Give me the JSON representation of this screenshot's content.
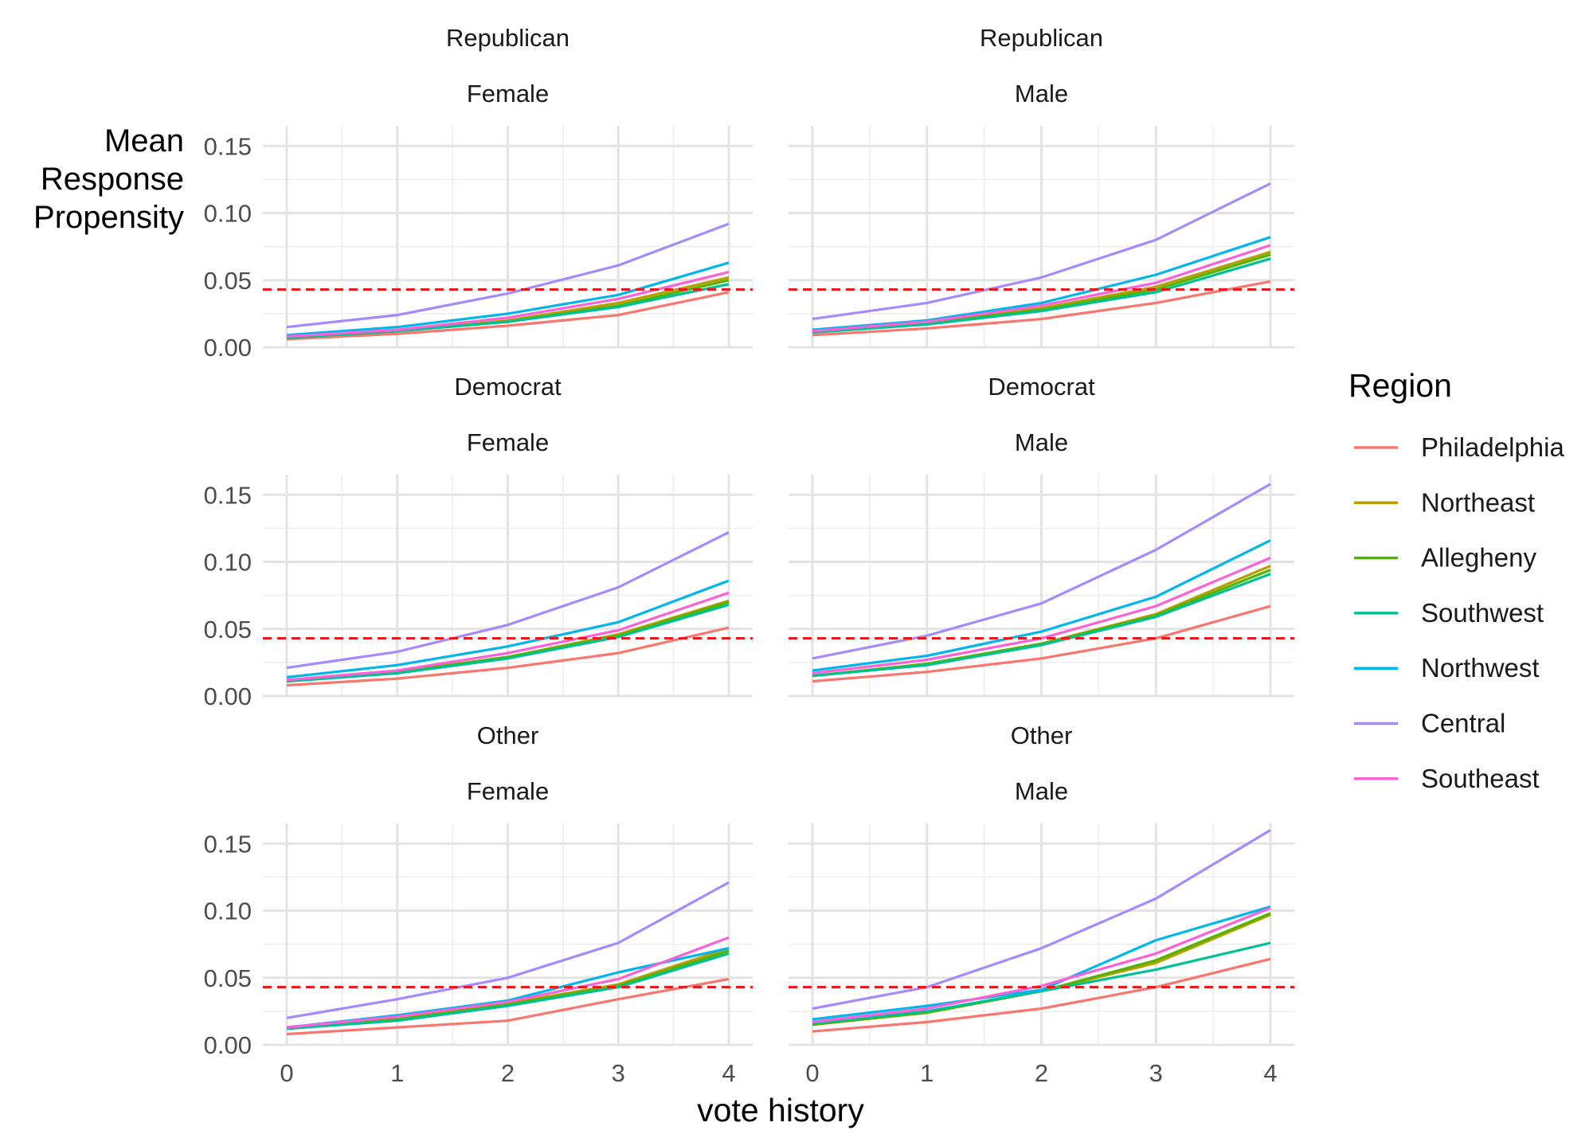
{
  "chart_data": {
    "type": "line",
    "facet_rows": [
      "Republican",
      "Democrat",
      "Other"
    ],
    "facet_cols": [
      "Female",
      "Male"
    ],
    "x": [
      0,
      1,
      2,
      3,
      4
    ],
    "x_ticks": [
      "0",
      "1",
      "2",
      "3",
      "4"
    ],
    "xlim": [
      0,
      4
    ],
    "ylim": [
      0,
      0.165
    ],
    "y_ticks": [
      "0.00",
      "0.05",
      "0.10",
      "0.15"
    ],
    "y_tick_values": [
      0,
      0.05,
      0.1,
      0.15
    ],
    "xlabel": "vote history",
    "ylabel": [
      "Mean",
      "Response",
      "Propensity"
    ],
    "reference_line": {
      "y": 0.043,
      "style": "dashed",
      "color": "#e41a1c"
    },
    "grid": true,
    "legend": {
      "title": "Region",
      "placement": "right",
      "items": [
        {
          "name": "Philadelphia",
          "color": "#f8766d"
        },
        {
          "name": "Northeast",
          "color": "#b79f00"
        },
        {
          "name": "Allegheny",
          "color": "#53b400"
        },
        {
          "name": "Southwest",
          "color": "#00c094"
        },
        {
          "name": "Northwest",
          "color": "#00b6eb"
        },
        {
          "name": "Central",
          "color": "#a58aff"
        },
        {
          "name": "Southeast",
          "color": "#fb61d7"
        }
      ]
    },
    "panels": [
      {
        "party": "Republican",
        "gender": "Female",
        "series": [
          {
            "name": "Philadelphia",
            "values": [
              0.006,
              0.01,
              0.016,
              0.024,
              0.041
            ]
          },
          {
            "name": "Northeast",
            "values": [
              0.007,
              0.012,
              0.02,
              0.033,
              0.052
            ]
          },
          {
            "name": "Allegheny",
            "values": [
              0.007,
              0.012,
              0.019,
              0.031,
              0.05
            ]
          },
          {
            "name": "Southwest",
            "values": [
              0.007,
              0.012,
              0.019,
              0.03,
              0.047
            ]
          },
          {
            "name": "Northwest",
            "values": [
              0.009,
              0.015,
              0.025,
              0.039,
              0.063
            ]
          },
          {
            "name": "Central",
            "values": [
              0.015,
              0.024,
              0.04,
              0.061,
              0.092
            ]
          },
          {
            "name": "Southeast",
            "values": [
              0.008,
              0.013,
              0.022,
              0.036,
              0.056
            ]
          }
        ]
      },
      {
        "party": "Republican",
        "gender": "Male",
        "series": [
          {
            "name": "Philadelphia",
            "values": [
              0.009,
              0.014,
              0.021,
              0.033,
              0.049
            ]
          },
          {
            "name": "Northeast",
            "values": [
              0.011,
              0.018,
              0.029,
              0.045,
              0.071
            ]
          },
          {
            "name": "Allegheny",
            "values": [
              0.011,
              0.018,
              0.028,
              0.043,
              0.069
            ]
          },
          {
            "name": "Southwest",
            "values": [
              0.011,
              0.017,
              0.027,
              0.041,
              0.066
            ]
          },
          {
            "name": "Northwest",
            "values": [
              0.013,
              0.02,
              0.033,
              0.054,
              0.082
            ]
          },
          {
            "name": "Central",
            "values": [
              0.021,
              0.033,
              0.052,
              0.08,
              0.122
            ]
          },
          {
            "name": "Southeast",
            "values": [
              0.012,
              0.019,
              0.031,
              0.048,
              0.076
            ]
          }
        ]
      },
      {
        "party": "Democrat",
        "gender": "Female",
        "series": [
          {
            "name": "Philadelphia",
            "values": [
              0.008,
              0.013,
              0.021,
              0.032,
              0.051
            ]
          },
          {
            "name": "Northeast",
            "values": [
              0.011,
              0.018,
              0.029,
              0.046,
              0.071
            ]
          },
          {
            "name": "Allegheny",
            "values": [
              0.011,
              0.018,
              0.029,
              0.045,
              0.07
            ]
          },
          {
            "name": "Southwest",
            "values": [
              0.011,
              0.017,
              0.028,
              0.044,
              0.068
            ]
          },
          {
            "name": "Northwest",
            "values": [
              0.014,
              0.023,
              0.037,
              0.055,
              0.086
            ]
          },
          {
            "name": "Central",
            "values": [
              0.021,
              0.033,
              0.053,
              0.081,
              0.122
            ]
          },
          {
            "name": "Southeast",
            "values": [
              0.012,
              0.019,
              0.032,
              0.049,
              0.077
            ]
          }
        ]
      },
      {
        "party": "Democrat",
        "gender": "Male",
        "series": [
          {
            "name": "Philadelphia",
            "values": [
              0.011,
              0.018,
              0.028,
              0.043,
              0.067
            ]
          },
          {
            "name": "Northeast",
            "values": [
              0.015,
              0.024,
              0.039,
              0.061,
              0.097
            ]
          },
          {
            "name": "Allegheny",
            "values": [
              0.015,
              0.024,
              0.039,
              0.06,
              0.094
            ]
          },
          {
            "name": "Southwest",
            "values": [
              0.015,
              0.023,
              0.038,
              0.059,
              0.091
            ]
          },
          {
            "name": "Northwest",
            "values": [
              0.019,
              0.03,
              0.048,
              0.074,
              0.116
            ]
          },
          {
            "name": "Central",
            "values": [
              0.028,
              0.045,
              0.069,
              0.109,
              0.158
            ]
          },
          {
            "name": "Southeast",
            "values": [
              0.017,
              0.027,
              0.043,
              0.067,
              0.103
            ]
          }
        ]
      },
      {
        "party": "Other",
        "gender": "Female",
        "series": [
          {
            "name": "Philadelphia",
            "values": [
              0.008,
              0.013,
              0.018,
              0.034,
              0.049
            ]
          },
          {
            "name": "Northeast",
            "values": [
              0.012,
              0.019,
              0.031,
              0.045,
              0.072
            ]
          },
          {
            "name": "Allegheny",
            "values": [
              0.012,
              0.019,
              0.03,
              0.044,
              0.07
            ]
          },
          {
            "name": "Southwest",
            "values": [
              0.012,
              0.018,
              0.029,
              0.043,
              0.068
            ]
          },
          {
            "name": "Northwest",
            "values": [
              0.013,
              0.022,
              0.033,
              0.054,
              0.072
            ]
          },
          {
            "name": "Central",
            "values": [
              0.02,
              0.034,
              0.05,
              0.076,
              0.121
            ]
          },
          {
            "name": "Southeast",
            "values": [
              0.013,
              0.021,
              0.032,
              0.049,
              0.08
            ]
          }
        ]
      },
      {
        "party": "Other",
        "gender": "Male",
        "series": [
          {
            "name": "Philadelphia",
            "values": [
              0.01,
              0.017,
              0.027,
              0.043,
              0.064
            ]
          },
          {
            "name": "Northeast",
            "values": [
              0.015,
              0.024,
              0.04,
              0.061,
              0.097
            ]
          },
          {
            "name": "Allegheny",
            "values": [
              0.015,
              0.024,
              0.04,
              0.063,
              0.098
            ]
          },
          {
            "name": "Southwest",
            "values": [
              0.016,
              0.025,
              0.04,
              0.056,
              0.076
            ]
          },
          {
            "name": "Northwest",
            "values": [
              0.019,
              0.029,
              0.041,
              0.078,
              0.103
            ]
          },
          {
            "name": "Central",
            "values": [
              0.027,
              0.043,
              0.072,
              0.109,
              0.16
            ]
          },
          {
            "name": "Southeast",
            "values": [
              0.017,
              0.027,
              0.044,
              0.068,
              0.102
            ]
          }
        ]
      }
    ]
  }
}
